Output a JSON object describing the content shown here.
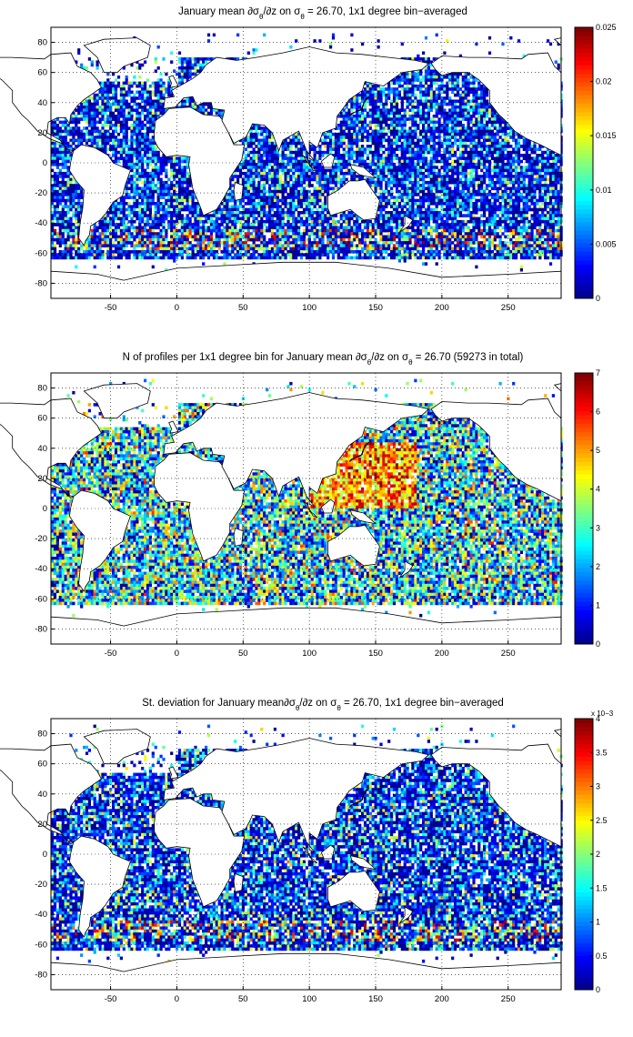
{
  "figure": {
    "panels": [
      {
        "id": "mean",
        "title": {
          "pre": "January mean ∂σ",
          "s1": "θ",
          "mid": "/∂z on σ",
          "s2": "θ",
          "post": " = 26.70, 1x1 degree bin−averaged"
        },
        "colorbar": {
          "ticks": [
            "0.025",
            "0.02",
            "0.015",
            "0.01",
            "0.005",
            "0"
          ],
          "exponent": ""
        },
        "palette_bias": 0.12,
        "density": 0.85
      },
      {
        "id": "count",
        "title": {
          "pre": "N of profiles per 1x1 degree bin for January mean ∂σ",
          "s1": "θ",
          "mid": "/∂z on σ",
          "s2": "θ",
          "post": " = 26.70 (59273 in total)"
        },
        "colorbar": {
          "ticks": [
            "7",
            "6",
            "5",
            "4",
            "3",
            "2",
            "1",
            "0"
          ],
          "exponent": ""
        },
        "palette_bias": 0.45,
        "density": 0.9
      },
      {
        "id": "std",
        "title": {
          "pre": "St. deviation for January mean∂σ",
          "s1": "θ",
          "mid": "/∂z on σ",
          "s2": "θ",
          "post": " = 26.70, 1x1 degree bin−averaged"
        },
        "colorbar": {
          "ticks": [
            "4",
            "3.5",
            "3",
            "2.5",
            "2",
            "1.5",
            "1",
            "0.5",
            "0"
          ],
          "exponent": "x 10−3"
        },
        "palette_bias": 0.18,
        "density": 0.85
      }
    ],
    "axes": {
      "x_ticks": [
        "-50",
        "0",
        "50",
        "100",
        "150",
        "200",
        "250"
      ],
      "y_ticks": [
        "80",
        "60",
        "40",
        "20",
        "0",
        "-20",
        "-40",
        "-60",
        "-80"
      ],
      "xlim": [
        -95,
        290
      ],
      "ylim": [
        -90,
        90
      ]
    },
    "colormap": "jet"
  }
}
